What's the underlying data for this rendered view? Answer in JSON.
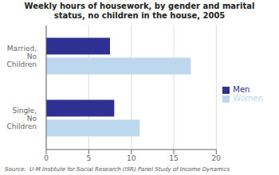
{
  "chart_data": {
    "type": "bar",
    "orientation": "horizontal",
    "title": "Weekly hours of housework, by gender and marital\nstatus, no children in the house, 2005",
    "categories": [
      "Single,\nNo\nChildren",
      "Married,\nNo\nChildren"
    ],
    "series": [
      {
        "name": "Men",
        "color": "#2E3192",
        "values": [
          8.0,
          7.5
        ]
      },
      {
        "name": "Women",
        "color": "#BDD7EE",
        "values": [
          11.0,
          17.0
        ]
      }
    ],
    "xlim": [
      0,
      20
    ],
    "xticks": [
      0,
      5,
      10,
      15,
      20
    ],
    "grid": true,
    "legend": "right",
    "annotations": [
      "Source:  U-M Institute for Social Research (ISR) Panel Study of Income Dynamics"
    ]
  }
}
